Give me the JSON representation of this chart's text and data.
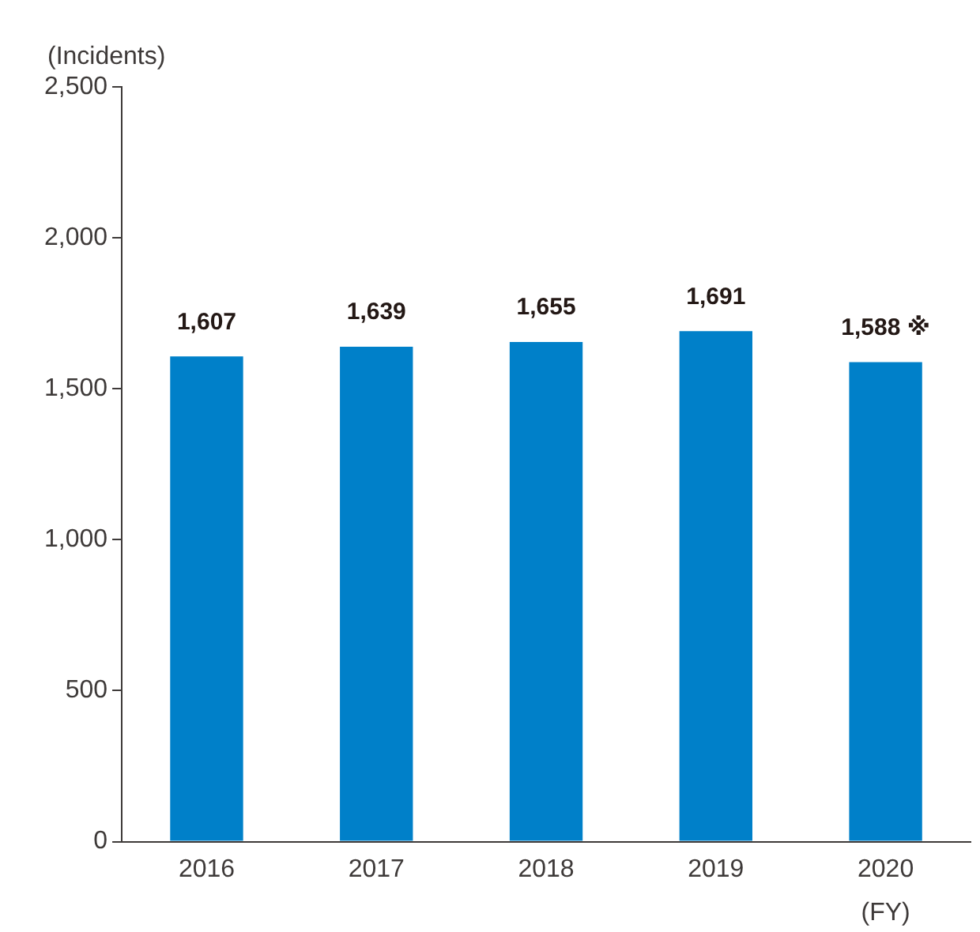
{
  "chart_data": {
    "type": "bar",
    "ylabel": "(Incidents)",
    "xlabel": "(FY)",
    "categories": [
      "2016",
      "2017",
      "2018",
      "2019",
      "2020"
    ],
    "values": [
      1607,
      1639,
      1655,
      1691,
      1588
    ],
    "color": "#0080c9",
    "value_labels": [
      "1,607",
      "1,639",
      "1,655",
      "1,691",
      "1,588 ※"
    ],
    "ylim": [
      0,
      2500
    ],
    "yticks": [
      {
        "value": 0,
        "label": "0"
      },
      {
        "value": 500,
        "label": "500"
      },
      {
        "value": 1000,
        "label": "1,000"
      },
      {
        "value": 1500,
        "label": "1,500"
      },
      {
        "value": 2000,
        "label": "2,000"
      },
      {
        "value": 2500,
        "label": "2,500"
      }
    ],
    "grid": false,
    "legend": false
  }
}
